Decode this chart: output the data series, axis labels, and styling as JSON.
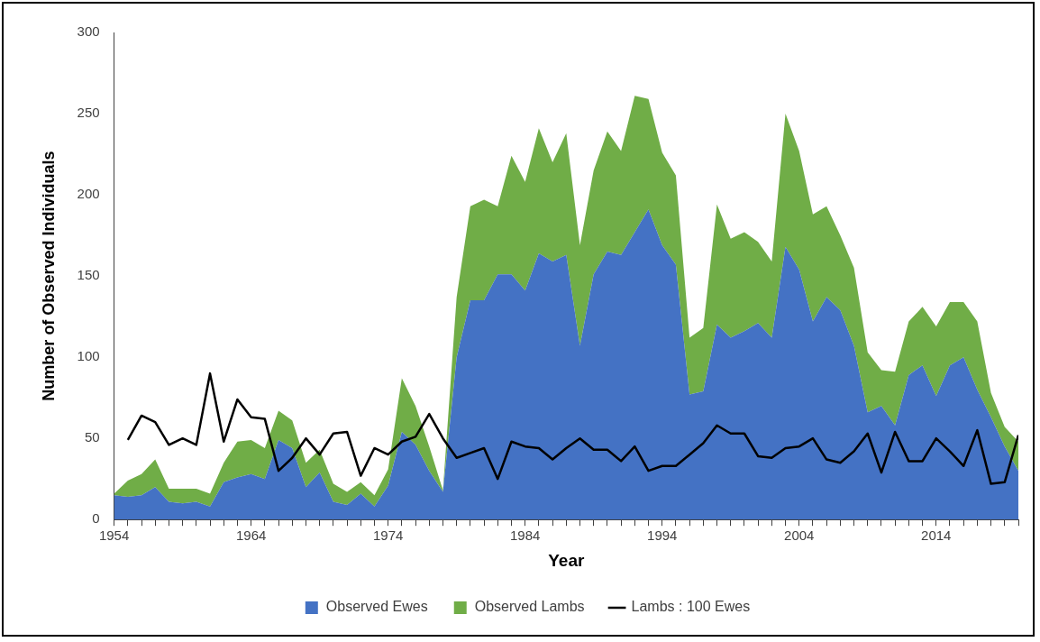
{
  "chart_data": {
    "type": "area",
    "xlabel": "Year",
    "ylabel": "Number of Observed Individuals",
    "x": [
      1954,
      1955,
      1956,
      1957,
      1958,
      1959,
      1960,
      1961,
      1962,
      1963,
      1964,
      1965,
      1966,
      1967,
      1968,
      1969,
      1970,
      1971,
      1972,
      1973,
      1974,
      1975,
      1976,
      1977,
      1978,
      1979,
      1980,
      1981,
      1982,
      1983,
      1984,
      1985,
      1986,
      1987,
      1988,
      1989,
      1990,
      1991,
      1992,
      1993,
      1994,
      1995,
      1996,
      1997,
      1998,
      1999,
      2000,
      2001,
      2002,
      2003,
      2004,
      2005,
      2006,
      2007,
      2008,
      2009,
      2010,
      2011,
      2012,
      2013,
      2014,
      2015,
      2016,
      2017,
      2018,
      2019,
      2020
    ],
    "stacked": true,
    "series": [
      {
        "name": "Observed Ewes",
        "type": "area",
        "color": "#4472c4",
        "values": [
          15,
          14,
          15,
          20,
          11,
          10,
          11,
          8,
          23,
          26,
          28,
          25,
          49,
          44,
          20,
          29,
          11,
          9,
          16,
          8,
          21,
          54,
          46,
          30,
          17,
          100,
          135,
          135,
          151,
          151,
          141,
          164,
          159,
          163,
          107,
          151,
          165,
          163,
          177,
          191,
          169,
          157,
          77,
          79,
          120,
          112,
          116,
          121,
          112,
          168,
          154,
          122,
          137,
          129,
          107,
          66,
          70,
          58,
          89,
          95,
          76,
          95,
          100,
          80,
          63,
          45,
          30
        ]
      },
      {
        "name": "Observed Lambs",
        "type": "area",
        "color": "#70ad47",
        "values": [
          1,
          10,
          13,
          17,
          8,
          9,
          8,
          8,
          12,
          22,
          21,
          19,
          18,
          17,
          15,
          14,
          11,
          8,
          7,
          7,
          10,
          33,
          24,
          15,
          1,
          37,
          58,
          62,
          42,
          73,
          67,
          77,
          61,
          75,
          62,
          64,
          74,
          64,
          84,
          68,
          57,
          55,
          35,
          39,
          74,
          61,
          61,
          50,
          47,
          82,
          73,
          66,
          56,
          46,
          48,
          37,
          22,
          33,
          33,
          36,
          43,
          39,
          34,
          42,
          15,
          12,
          18
        ]
      },
      {
        "name": "Lambs : 100 Ewes",
        "type": "line",
        "color": "#000000",
        "values": [
          null,
          49,
          64,
          60,
          46,
          50,
          46,
          90,
          48,
          74,
          63,
          62,
          30,
          38,
          50,
          40,
          53,
          54,
          27,
          44,
          40,
          48,
          51,
          65,
          50,
          38,
          41,
          44,
          25,
          48,
          45,
          44,
          37,
          44,
          50,
          43,
          43,
          36,
          45,
          30,
          33,
          33,
          40,
          47,
          58,
          53,
          53,
          39,
          38,
          44,
          45,
          50,
          37,
          35,
          42,
          53,
          29,
          54,
          36,
          36,
          50,
          42,
          33,
          55,
          22,
          23,
          52
        ]
      }
    ],
    "xlim": [
      1954,
      2020
    ],
    "xticks": [
      1954,
      {
        "value": 1955,
        "label": null
      },
      {
        "value": 1956,
        "label": null
      },
      {
        "value": 1957,
        "label": null
      },
      {
        "value": 1958,
        "label": null
      },
      {
        "value": 1959,
        "label": null
      },
      {
        "value": 1960,
        "label": null
      },
      {
        "value": 1961,
        "label": null
      },
      {
        "value": 1962,
        "label": null
      },
      {
        "value": 1963,
        "label": null
      },
      1964,
      {
        "value": 1965,
        "label": null
      },
      {
        "value": 1966,
        "label": null
      },
      {
        "value": 1967,
        "label": null
      },
      {
        "value": 1968,
        "label": null
      },
      {
        "value": 1969,
        "label": null
      },
      {
        "value": 1970,
        "label": null
      },
      {
        "value": 1971,
        "label": null
      },
      {
        "value": 1972,
        "label": null
      },
      {
        "value": 1973,
        "label": null
      },
      1974,
      {
        "value": 1975,
        "label": null
      },
      {
        "value": 1976,
        "label": null
      },
      {
        "value": 1977,
        "label": null
      },
      {
        "value": 1978,
        "label": null
      },
      {
        "value": 1979,
        "label": null
      },
      {
        "value": 1980,
        "label": null
      },
      {
        "value": 1981,
        "label": null
      },
      {
        "value": 1982,
        "label": null
      },
      {
        "value": 1983,
        "label": null
      },
      1984,
      {
        "value": 1985,
        "label": null
      },
      {
        "value": 1986,
        "label": null
      },
      {
        "value": 1987,
        "label": null
      },
      {
        "value": 1988,
        "label": null
      },
      {
        "value": 1989,
        "label": null
      },
      {
        "value": 1990,
        "label": null
      },
      {
        "value": 1991,
        "label": null
      },
      {
        "value": 1992,
        "label": null
      },
      {
        "value": 1993,
        "label": null
      },
      1994,
      {
        "value": 1995,
        "label": null
      },
      {
        "value": 1996,
        "label": null
      },
      {
        "value": 1997,
        "label": null
      },
      {
        "value": 1998,
        "label": null
      },
      {
        "value": 1999,
        "label": null
      },
      {
        "value": 2000,
        "label": null
      },
      {
        "value": 2001,
        "label": null
      },
      {
        "value": 2002,
        "label": null
      },
      {
        "value": 2003,
        "label": null
      },
      2004,
      {
        "value": 2005,
        "label": null
      },
      {
        "value": 2006,
        "label": null
      },
      {
        "value": 2007,
        "label": null
      },
      {
        "value": 2008,
        "label": null
      },
      {
        "value": 2009,
        "label": null
      },
      {
        "value": 2010,
        "label": null
      },
      {
        "value": 2011,
        "label": null
      },
      {
        "value": 2012,
        "label": null
      },
      {
        "value": 2013,
        "label": null
      },
      2014,
      {
        "value": 2015,
        "label": null
      },
      {
        "value": 2016,
        "label": null
      },
      {
        "value": 2017,
        "label": null
      },
      {
        "value": 2018,
        "label": null
      },
      {
        "value": 2019,
        "label": null
      },
      {
        "value": 2020,
        "label": null
      }
    ],
    "ylim": [
      0,
      300
    ],
    "yticks": [
      0,
      50,
      100,
      150,
      200,
      250,
      300
    ],
    "grid": false,
    "legend": "bottom"
  }
}
